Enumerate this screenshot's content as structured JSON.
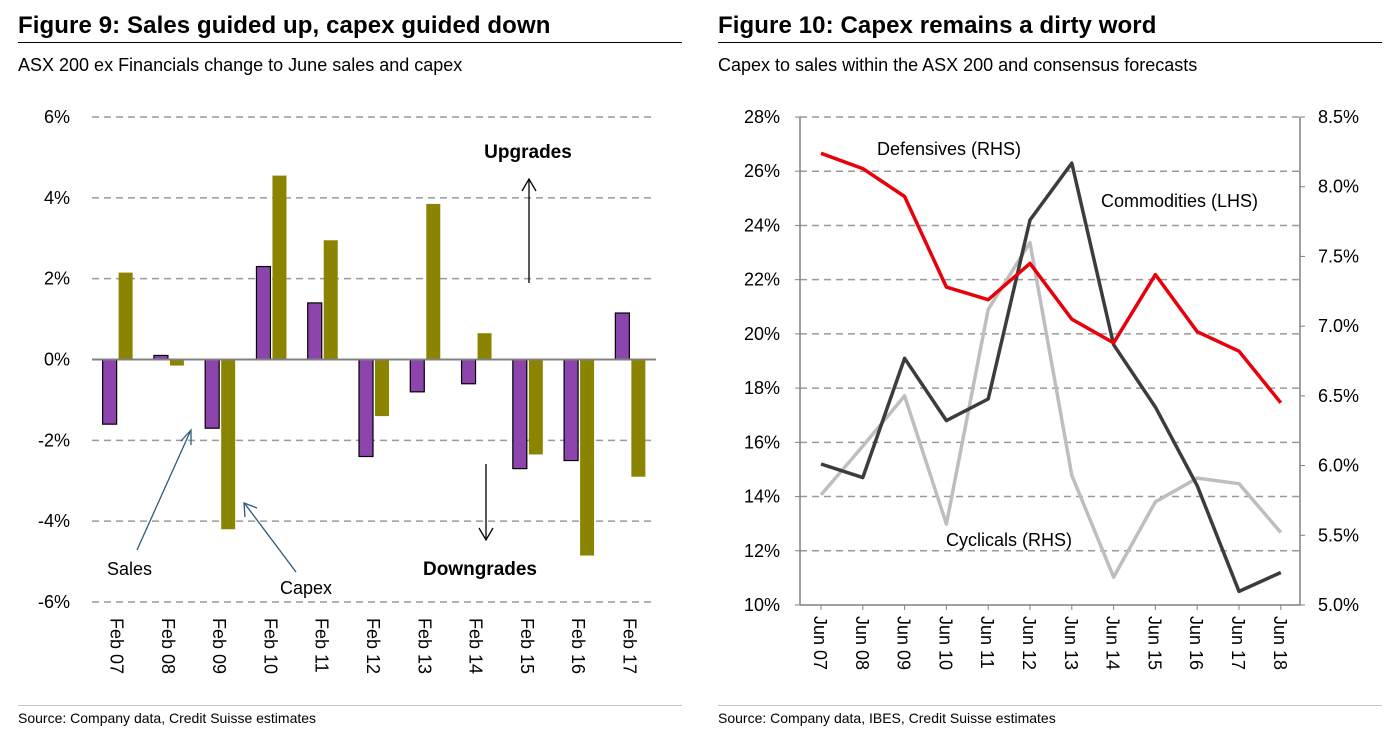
{
  "charts": [
    {
      "figure_title": "Figure 9: Sales guided up, capex guided down",
      "subtitle": "ASX 200 ex Financials change to June sales and capex",
      "source": "Source: Company data, Credit Suisse estimates",
      "annotations": {
        "upgrades": "Upgrades",
        "downgrades": "Downgrades",
        "sales": "Sales",
        "capex": "Capex"
      }
    },
    {
      "figure_title": "Figure 10: Capex remains a dirty word",
      "subtitle": "Capex to sales within the ASX 200 and consensus forecasts",
      "source": "Source: Company data, IBES, Credit Suisse estimates",
      "annotations": {
        "defensives": "Defensives (RHS)",
        "commodities": "Commodities (LHS)",
        "cyclicals": "Cyclicals (RHS)"
      }
    }
  ],
  "chart_data": [
    {
      "type": "bar",
      "title": "Figure 9: Sales guided up, capex guided down",
      "categories": [
        "Feb 07",
        "Feb 08",
        "Feb 09",
        "Feb 10",
        "Feb 11",
        "Feb 12",
        "Feb 13",
        "Feb 14",
        "Feb 15",
        "Feb 16",
        "Feb 17"
      ],
      "series": [
        {
          "name": "Sales",
          "color": "#8e44ad",
          "values": [
            -1.6,
            0.1,
            -1.7,
            2.3,
            1.4,
            -2.4,
            -0.8,
            -0.6,
            -2.7,
            -2.5,
            1.15
          ]
        },
        {
          "name": "Capex",
          "color": "#8b8400",
          "values": [
            2.15,
            -0.15,
            -4.2,
            4.55,
            2.95,
            -1.4,
            3.85,
            0.65,
            -2.35,
            -4.85,
            -2.9
          ]
        }
      ],
      "ylim": [
        -6,
        6
      ],
      "yticks": [
        6,
        4,
        2,
        0,
        -2,
        -4,
        -6
      ],
      "ytick_labels": [
        "6%",
        "4%",
        "2%",
        "0%",
        "-2%",
        "-4%",
        "-6%"
      ],
      "grid": true
    },
    {
      "type": "line",
      "title": "Figure 10: Capex remains a dirty word",
      "categories": [
        "Jun 07",
        "Jun 08",
        "Jun 09",
        "Jun 10",
        "Jun 11",
        "Jun 12",
        "Jun 13",
        "Jun 14",
        "Jun 15",
        "Jun 16",
        "Jun 17",
        "Jun 18"
      ],
      "series": [
        {
          "name": "Defensives (RHS)",
          "axis": "right",
          "color": "#e8000b",
          "values": [
            8.24,
            8.13,
            7.93,
            7.28,
            7.19,
            7.45,
            7.05,
            6.88,
            7.37,
            6.96,
            6.82,
            6.45
          ]
        },
        {
          "name": "Commodities (LHS)",
          "axis": "left",
          "color": "#3c3c3c",
          "values": [
            15.2,
            14.7,
            19.1,
            16.8,
            17.6,
            24.2,
            26.3,
            19.6,
            17.3,
            14.4,
            10.5,
            11.2
          ]
        },
        {
          "name": "Cyclicals (RHS)",
          "axis": "right",
          "color": "#bebebe",
          "values": [
            5.79,
            6.14,
            6.5,
            5.58,
            7.12,
            7.6,
            5.93,
            5.2,
            5.74,
            5.91,
            5.87,
            5.52
          ]
        }
      ],
      "ylim_left": [
        10,
        28
      ],
      "yticks_left": [
        28,
        26,
        24,
        22,
        20,
        18,
        16,
        14,
        12,
        10
      ],
      "ytick_labels_left": [
        "28%",
        "26%",
        "24%",
        "22%",
        "20%",
        "18%",
        "16%",
        "14%",
        "12%",
        "10%"
      ],
      "ylim_right": [
        5.0,
        8.5
      ],
      "yticks_right": [
        8.5,
        8.0,
        7.5,
        7.0,
        6.5,
        6.0,
        5.5,
        5.0
      ],
      "ytick_labels_right": [
        "8.5%",
        "8.0%",
        "7.5%",
        "7.0%",
        "6.5%",
        "6.0%",
        "5.5%",
        "5.0%"
      ],
      "grid": true
    }
  ]
}
